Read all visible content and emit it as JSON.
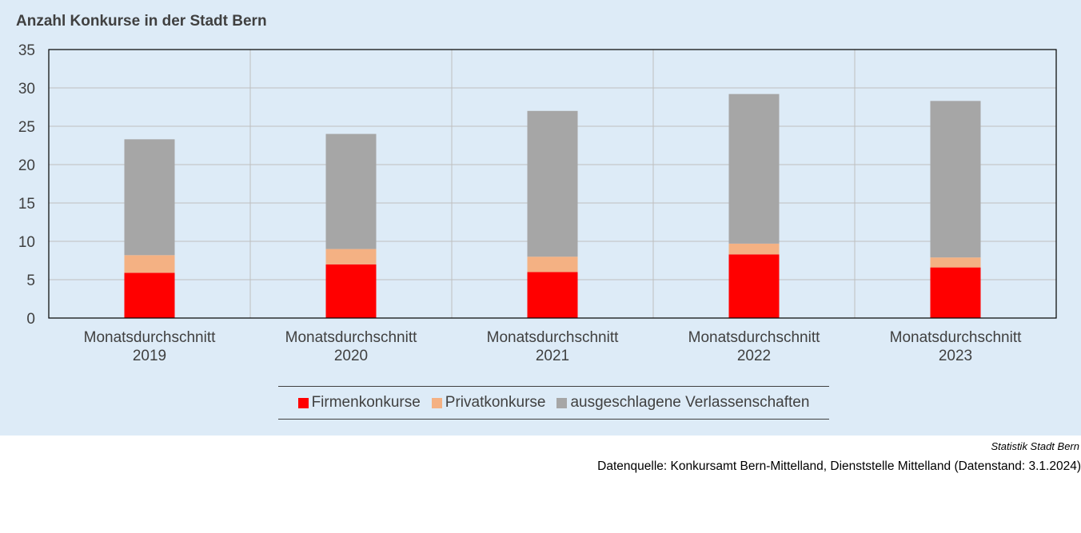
{
  "chart_data": {
    "type": "bar",
    "stacked": true,
    "title": "Anzahl Konkurse in der Stadt Bern",
    "xlabel": "",
    "ylabel": "",
    "ylim": [
      0,
      35
    ],
    "yticks": [
      0,
      5,
      10,
      15,
      20,
      25,
      30,
      35
    ],
    "grid": true,
    "legend_position": "bottom",
    "categories": [
      [
        "Monatsdurchschnitt",
        "2019"
      ],
      [
        "Monatsdurchschnitt",
        "2020"
      ],
      [
        "Monatsdurchschnitt",
        "2021"
      ],
      [
        "Monatsdurchschnitt",
        "2022"
      ],
      [
        "Monatsdurchschnitt",
        "2023"
      ]
    ],
    "series": [
      {
        "name": "Firmenkonkurse",
        "color": "#ff0000",
        "values": [
          5.9,
          7.0,
          6.0,
          8.3,
          6.6
        ]
      },
      {
        "name": "Privatkonkurse",
        "color": "#f4b183",
        "values": [
          2.3,
          2.0,
          2.0,
          1.4,
          1.3
        ]
      },
      {
        "name": "ausgeschlagene Verlassenschaften",
        "color": "#a6a6a6",
        "values": [
          15.1,
          15.0,
          19.0,
          19.5,
          20.4
        ]
      }
    ]
  },
  "source": {
    "organization": "Statistik Stadt Bern",
    "text": "Datenquelle: Konkursamt Bern-Mittelland, Dienststelle Mittelland (Datenstand: 3.1.2024)"
  }
}
